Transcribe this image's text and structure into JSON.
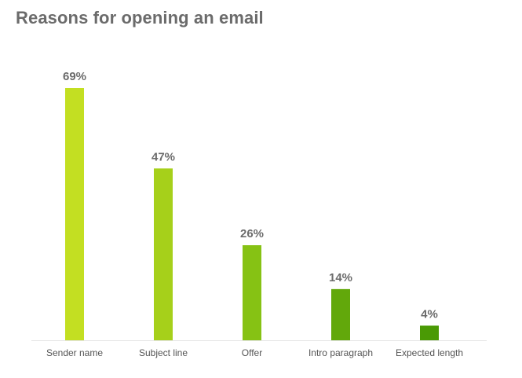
{
  "chart_data": {
    "type": "bar",
    "title": "Reasons for opening an email",
    "xlabel": "",
    "ylabel": "",
    "categories": [
      "Sender name",
      "Subject line",
      "Offer",
      "Intro paragraph",
      "Expected length"
    ],
    "values": [
      69,
      47,
      26,
      14,
      4
    ],
    "value_labels": [
      "69%",
      "47%",
      "26%",
      "14%",
      "4%"
    ],
    "unit": "%",
    "ylim": [
      0,
      69
    ],
    "grid": false,
    "legend": "none",
    "colors": [
      "#c3df22",
      "#a6d01a",
      "#86c214",
      "#62a80b",
      "#4a9a05"
    ],
    "axis_color": "#e6e6e6"
  }
}
